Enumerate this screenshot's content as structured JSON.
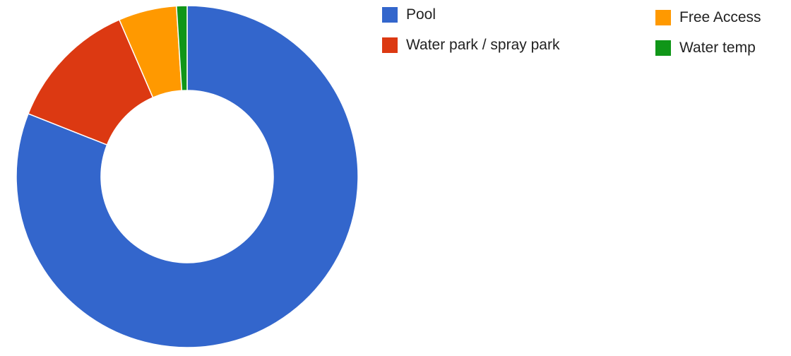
{
  "chart_data": {
    "type": "pie",
    "donut": true,
    "legend_position": "right",
    "slices": [
      {
        "label": "Pool",
        "value": 81.0,
        "color": "#3366CC"
      },
      {
        "label": "Water park / spray park",
        "value": 12.5,
        "color": "#DC3912"
      },
      {
        "label": "Free Access",
        "value": 5.5,
        "color": "#FF9900"
      },
      {
        "label": "Water temp",
        "value": 1.0,
        "color": "#109618"
      }
    ]
  }
}
